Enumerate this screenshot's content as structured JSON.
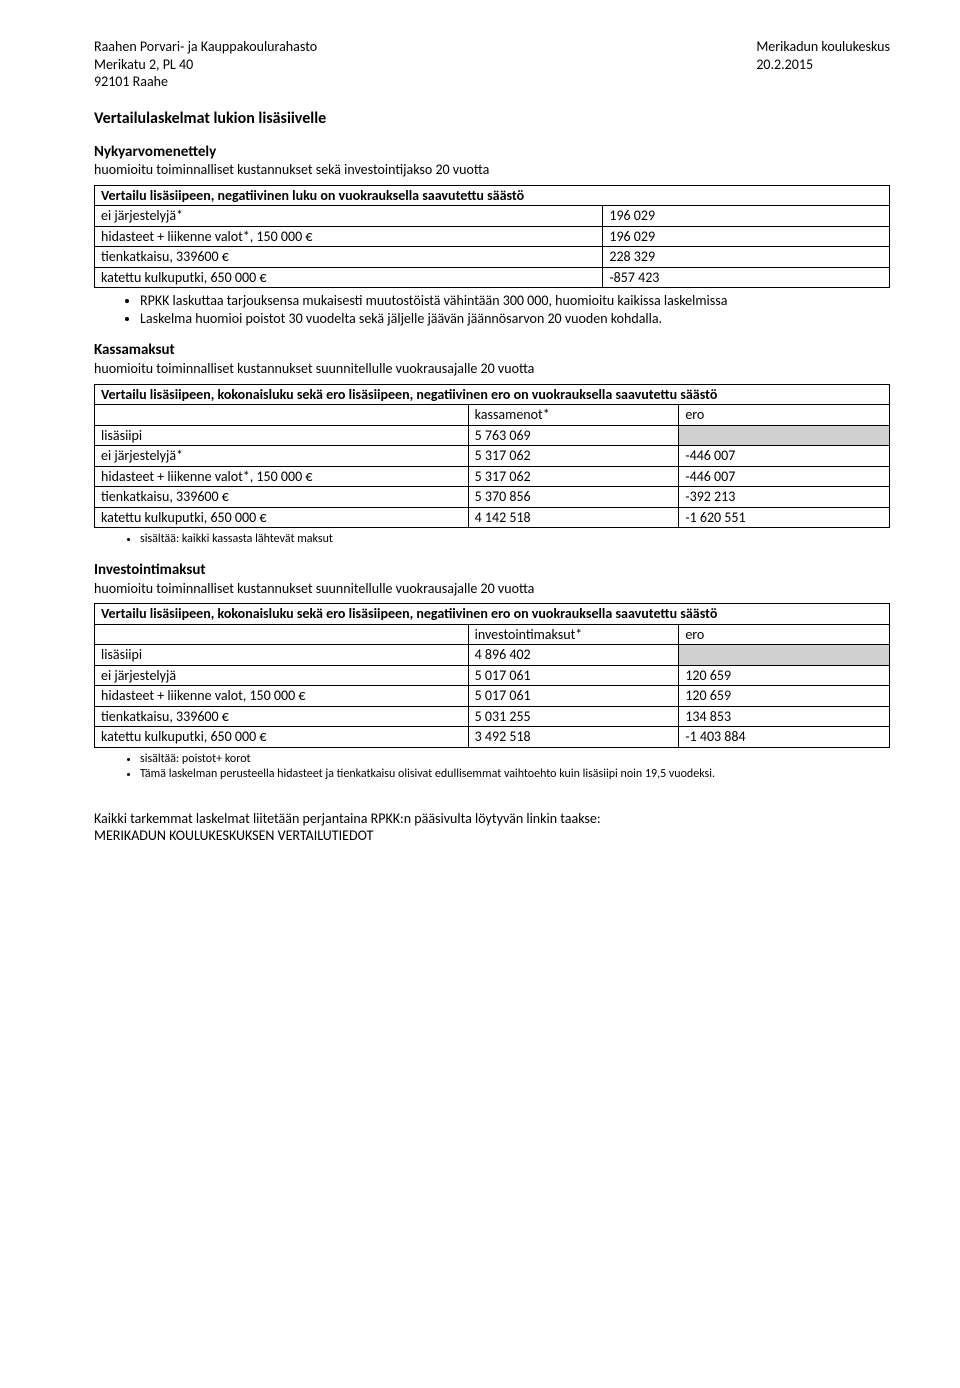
{
  "header": {
    "left_line1": "Raahen Porvari- ja Kauppakoulurahasto",
    "left_line2": "Merikatu 2, PL 40",
    "left_line3": "92101 Raahe",
    "right_line1": "Merikadun koulukeskus",
    "right_line2": "",
    "right_line3": "20.2.2015"
  },
  "title": "Vertailulaskelmat lukion lisäsiivelle",
  "section1": {
    "heading": "Nykyarvomenettely",
    "sub": "huomioitu toiminnalliset kustannukset sekä investointijakso 20 vuotta",
    "table_title": "Vertailu lisäsiipeen, negatiivinen luku on vuokrauksella saavutettu säästö",
    "rows": [
      {
        "label": "ei järjestelyjä*",
        "v1": "196 029",
        "v2": ""
      },
      {
        "label": "hidasteet + liikenne valot*, 150 000 €",
        "v1": "196 029",
        "v2": ""
      },
      {
        "label": "tienkatkaisu, 339600 €",
        "v1": "228 329",
        "v2": ""
      },
      {
        "label": "katettu kulkuputki, 650 000 €",
        "v1": "-857 423",
        "v2": ""
      }
    ],
    "bullets": [
      "RPKK laskuttaa tarjouksensa mukaisesti muutostöistä vähintään 300 000, huomioitu kaikissa laskelmissa",
      "Laskelma huomioi poistot 30 vuodelta sekä jäljelle jäävän jäännösarvon 20 vuoden kohdalla."
    ]
  },
  "section2": {
    "heading": "Kassamaksut",
    "sub": "huomioitu toiminnalliset kustannukset suunnitellulle vuokrausajalle 20 vuotta",
    "table_title": "Vertailu lisäsiipeen, kokonaisluku sekä ero lisäsiipeen, negatiivinen ero on vuokrauksella saavutettu säästö",
    "col_headers": {
      "c1": "",
      "c2": "kassamenot*",
      "c3": "ero"
    },
    "rows": [
      {
        "label": "lisäsiipi",
        "v1": "5 763 069",
        "v2": "",
        "shaded": true
      },
      {
        "label": "ei järjestelyjä*",
        "v1": "5 317 062",
        "v2": "-446 007"
      },
      {
        "label": "hidasteet + liikenne valot*, 150 000 €",
        "v1": "5 317 062",
        "v2": "-446 007"
      },
      {
        "label": "tienkatkaisu, 339600 €",
        "v1": "5 370 856",
        "v2": "-392 213"
      },
      {
        "label": "katettu kulkuputki, 650 000 €",
        "v1": "4 142 518",
        "v2": "-1 620 551"
      }
    ],
    "bullets": [
      "sisältää: kaikki kassasta lähtevät maksut"
    ]
  },
  "section3": {
    "heading": "Investointimaksut",
    "sub": "huomioitu toiminnalliset kustannukset suunnitellulle vuokrausajalle 20 vuotta",
    "table_title": "Vertailu lisäsiipeen, kokonaisluku sekä ero lisäsiipeen, negatiivinen ero on vuokrauksella saavutettu säästö",
    "col_headers": {
      "c1": "",
      "c2": "investointimaksut*",
      "c3": "ero"
    },
    "rows": [
      {
        "label": "lisäsiipi",
        "v1": "4 896 402",
        "v2": "",
        "shaded": true
      },
      {
        "label": "ei järjestelyjä",
        "v1": "5 017 061",
        "v2": "120 659"
      },
      {
        "label": "hidasteet + liikenne valot, 150 000 €",
        "v1": "5 017 061",
        "v2": "120 659"
      },
      {
        "label": "tienkatkaisu, 339600 €",
        "v1": "5 031 255",
        "v2": "134 853"
      },
      {
        "label": "katettu kulkuputki, 650 000 €",
        "v1": "3 492 518",
        "v2": "-1 403 884"
      }
    ],
    "bullets": [
      "sisältää: poistot+ korot",
      "Tämä laskelman perusteella hidasteet ja tienkatkaisu olisivat edullisemmat vaihtoehto kuin lisäsiipi noin 19,5 vuodeksi."
    ]
  },
  "footer": {
    "line1": "Kaikki tarkemmat laskelmat liitetään perjantaina RPKK:n pääsivulta löytyvän linkin taakse:",
    "line2": "MERIKADUN KOULUKESKUKSEN VERTAILUTIEDOT"
  }
}
